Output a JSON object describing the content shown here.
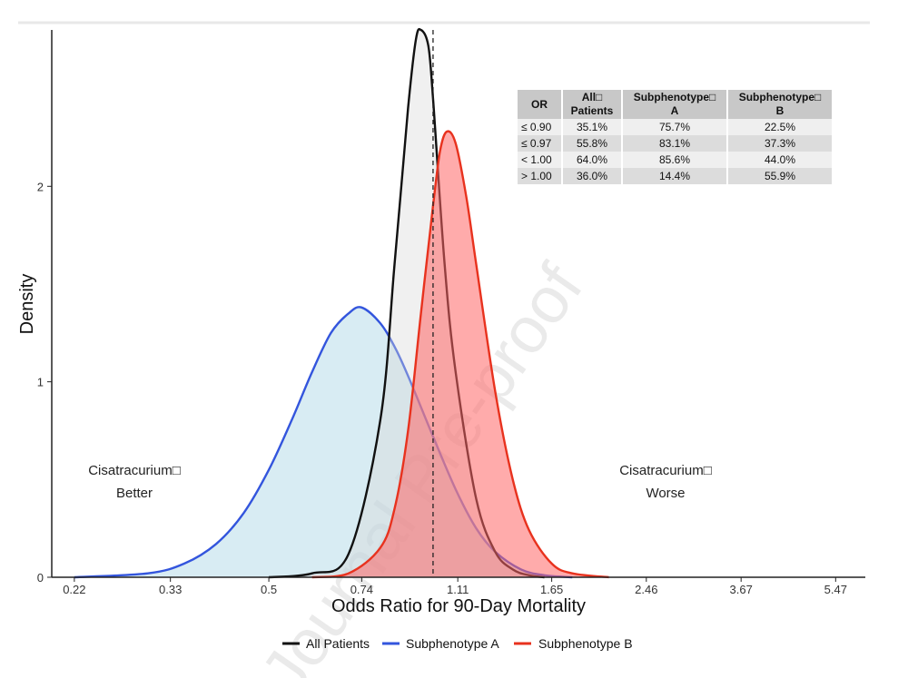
{
  "chart_data": {
    "type": "area",
    "xlabel": "Odds Ratio for 90-Day Mortality",
    "ylabel": "Density",
    "x_scale": "log",
    "x_ticks": [
      0.22,
      0.33,
      0.5,
      0.74,
      1.11,
      1.65,
      2.46,
      3.67,
      5.47
    ],
    "x_tick_labels": [
      "0.22",
      "0.33",
      "0.5",
      "0.74",
      "1.11",
      "1.65",
      "2.46",
      "3.67",
      "5.47"
    ],
    "xlim": [
      0.2,
      6.2
    ],
    "ylim": [
      0,
      2.8
    ],
    "y_ticks": [
      0,
      1,
      2
    ],
    "y_tick_labels": [
      "0",
      "1",
      "2"
    ],
    "reference_line": 1.0,
    "series": [
      {
        "name": "All Patients",
        "color": "#111111",
        "fill": "#d8d8d8",
        "x": [
          0.5,
          0.6,
          0.7,
          0.8,
          0.85,
          0.9,
          0.93,
          0.95,
          0.98,
          1.0,
          1.05,
          1.1,
          1.2,
          1.3,
          1.4,
          1.5,
          1.6
        ],
        "values": [
          0.0,
          0.02,
          0.12,
          0.8,
          1.6,
          2.4,
          2.75,
          2.8,
          2.72,
          2.45,
          1.6,
          1.05,
          0.4,
          0.13,
          0.04,
          0.01,
          0.0
        ]
      },
      {
        "name": "Subphenotype A",
        "color": "#3355dd",
        "fill": "#add8e6",
        "x": [
          0.22,
          0.3,
          0.35,
          0.4,
          0.45,
          0.5,
          0.55,
          0.6,
          0.65,
          0.7,
          0.74,
          0.8,
          0.85,
          0.9,
          1.0,
          1.1,
          1.2,
          1.3,
          1.45,
          1.6,
          1.8
        ],
        "values": [
          0.0,
          0.02,
          0.07,
          0.17,
          0.33,
          0.55,
          0.8,
          1.05,
          1.25,
          1.35,
          1.38,
          1.3,
          1.18,
          1.03,
          0.72,
          0.45,
          0.25,
          0.13,
          0.04,
          0.01,
          0.0
        ]
      },
      {
        "name": "Subphenotype B",
        "color": "#e8321e",
        "fill": "#ff6666",
        "x": [
          0.6,
          0.7,
          0.8,
          0.85,
          0.9,
          0.95,
          1.0,
          1.03,
          1.06,
          1.1,
          1.15,
          1.2,
          1.3,
          1.4,
          1.5,
          1.65,
          1.8,
          2.1
        ],
        "values": [
          0.0,
          0.02,
          0.15,
          0.35,
          0.75,
          1.35,
          1.9,
          2.18,
          2.28,
          2.22,
          1.95,
          1.6,
          0.95,
          0.5,
          0.24,
          0.07,
          0.02,
          0.0
        ]
      }
    ]
  },
  "annotations": {
    "left": [
      "Cisatracurium□",
      "Better"
    ],
    "right": [
      "Cisatracurium□",
      "Worse"
    ]
  },
  "watermark": "Journal Pre-proof",
  "legend": {
    "items": [
      {
        "label": "All Patients",
        "color": "#111111"
      },
      {
        "label": "Subphenotype A",
        "color": "#3355dd"
      },
      {
        "label": "Subphenotype B",
        "color": "#e8321e"
      }
    ]
  },
  "table": {
    "headers": [
      [
        "OR"
      ],
      [
        "All□",
        "Patients"
      ],
      [
        "Subphenotype□",
        "A"
      ],
      [
        "Subphenotype□",
        "B"
      ]
    ],
    "rows": [
      [
        "≤ 0.90",
        "35.1%",
        "75.7%",
        "22.5%"
      ],
      [
        "≤ 0.97",
        "55.8%",
        "83.1%",
        "37.3%"
      ],
      [
        "< 1.00",
        "64.0%",
        "85.6%",
        "44.0%"
      ],
      [
        "> 1.00",
        "36.0%",
        "14.4%",
        "55.9%"
      ]
    ]
  }
}
